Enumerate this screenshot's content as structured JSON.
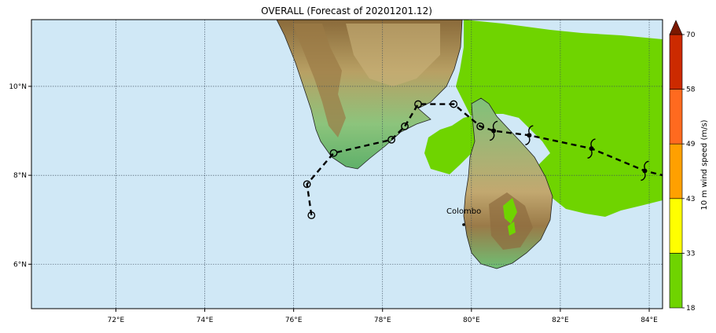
{
  "title": "OVERALL (Forecast of 20201201.12)",
  "x_ticks": [
    "72°E",
    "74°E",
    "76°E",
    "78°E",
    "80°E",
    "82°E",
    "84°E"
  ],
  "y_ticks": [
    "10°N",
    "8°N",
    "6°N"
  ],
  "place_label": "Colombo",
  "colorbar": {
    "label": "10 m wind speed (m/s)",
    "ticks": [
      "18",
      "33",
      "43",
      "49",
      "58",
      "70"
    ],
    "colors": [
      "#6fd400",
      "#ffff00",
      "#ffa000",
      "#ff6a1f",
      "#cc2a00",
      "#7a1800"
    ]
  },
  "colors": {
    "ocean": "#d0e8f6",
    "land_low": "#7ec07a",
    "wind_fill": "#6fd400",
    "track": "#000000"
  },
  "map_data": {
    "extent": {
      "lon": [
        70.1,
        84.3
      ],
      "lat": [
        5.0,
        11.5
      ]
    },
    "track_history": [
      {
        "lon": 76.4,
        "lat": 7.1
      },
      {
        "lon": 76.3,
        "lat": 7.8
      },
      {
        "lon": 76.9,
        "lat": 8.5
      },
      {
        "lon": 78.2,
        "lat": 8.8
      },
      {
        "lon": 78.5,
        "lat": 9.1
      },
      {
        "lon": 78.8,
        "lat": 9.6
      },
      {
        "lon": 79.6,
        "lat": 9.6
      },
      {
        "lon": 80.2,
        "lat": 9.1
      }
    ],
    "track_forecast": [
      {
        "lon": 80.5,
        "lat": 9.0
      },
      {
        "lon": 81.3,
        "lat": 8.9
      },
      {
        "lon": 82.7,
        "lat": 8.6
      },
      {
        "lon": 83.9,
        "lat": 8.1
      },
      {
        "lon": 84.3,
        "lat": 8.0
      }
    ]
  }
}
